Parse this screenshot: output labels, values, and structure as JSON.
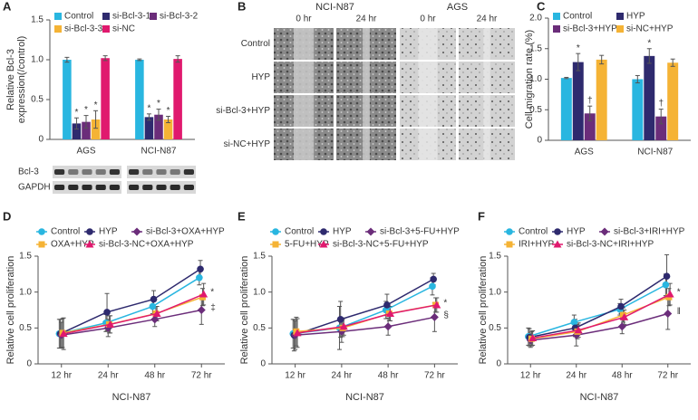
{
  "chart_data": [
    {
      "panel": "A",
      "type": "bar",
      "y_label": [
        "Relative Bcl-3",
        "expression(/control)"
      ],
      "categories": [
        "AGS",
        "NCI-N87"
      ],
      "series": [
        {
          "name": "Control",
          "color": "#29b6e0",
          "values": [
            1.0,
            1.0
          ],
          "errors": [
            0.03,
            0.01
          ],
          "significance": [
            null,
            null
          ]
        },
        {
          "name": "si-Bcl-3-1",
          "color": "#2e2a6e",
          "values": [
            0.2,
            0.28
          ],
          "errors": [
            0.07,
            0.04
          ],
          "significance": [
            "*",
            "*"
          ]
        },
        {
          "name": "si-Bcl-3-2",
          "color": "#6b2d7a",
          "values": [
            0.22,
            0.31
          ],
          "errors": [
            0.08,
            0.07
          ],
          "significance": [
            "*",
            "*"
          ]
        },
        {
          "name": "si-Bcl-3-3",
          "color": "#f5b335",
          "values": [
            0.25,
            0.25
          ],
          "errors": [
            0.11,
            0.04
          ],
          "significance": [
            "*",
            "*"
          ]
        },
        {
          "name": "si-NC",
          "color": "#e0196e",
          "values": [
            1.02,
            1.01
          ],
          "errors": [
            0.03,
            0.04
          ],
          "significance": [
            null,
            null
          ]
        }
      ],
      "ylim": [
        0,
        1.5
      ],
      "yticks": [
        0,
        0.5,
        {
          "value": 1,
          "label": "1.0"
        },
        1.5
      ],
      "blot_labels": [
        "Bcl-3",
        "GAPDH"
      ]
    },
    {
      "panel": "C",
      "type": "bar",
      "y_label": [
        "Cell migration rate (%)"
      ],
      "categories": [
        "AGS",
        "NCI-N87"
      ],
      "series": [
        {
          "name": "Control",
          "color": "#29b6e0",
          "values": [
            1.02,
            1.0
          ],
          "errors": [
            0.01,
            0.06
          ],
          "significance": [
            null,
            null
          ]
        },
        {
          "name": "HYP",
          "color": "#2e2a6e",
          "values": [
            1.28,
            1.38
          ],
          "errors": [
            0.14,
            0.12
          ],
          "significance": [
            "*",
            "*"
          ]
        },
        {
          "name": "si-Bcl-3+HYP",
          "color": "#6b2d7a",
          "values": [
            0.44,
            0.39
          ],
          "errors": [
            0.12,
            0.12
          ],
          "significance": [
            "†",
            "†"
          ]
        },
        {
          "name": "si-NC+HYP",
          "color": "#f5b335",
          "values": [
            1.32,
            1.27
          ],
          "errors": [
            0.07,
            0.06
          ],
          "significance": [
            null,
            null
          ]
        }
      ],
      "ylim": [
        0,
        2
      ],
      "yticks": [
        0,
        0.5,
        {
          "value": 1,
          "label": "1.0"
        },
        1.5,
        {
          "value": 2,
          "label": "2.0"
        }
      ]
    },
    {
      "panel": "D",
      "type": "line",
      "x_label": "NCI-N87",
      "y_label": [
        "Relative cell proliferation"
      ],
      "categories": [
        "12 hr",
        "24 hr",
        "48 hr",
        "72 hr"
      ],
      "series": [
        {
          "name": "Control",
          "color": "#29b6e0",
          "marker": "circle",
          "values": [
            0.42,
            0.57,
            0.8,
            1.2
          ],
          "errors": [
            0.2,
            0.12,
            0.1,
            0.1
          ],
          "significance": null
        },
        {
          "name": "HYP",
          "color": "#2e2a6e",
          "marker": "circle",
          "values": [
            0.42,
            0.72,
            0.9,
            1.32
          ],
          "errors": [
            0.2,
            0.26,
            0.12,
            0.12
          ],
          "significance": null
        },
        {
          "name": "si-Bcl-3+OXA+HYP",
          "color": "#6b2d7a",
          "marker": "diamond",
          "values": [
            0.4,
            0.5,
            0.62,
            0.75
          ],
          "errors": [
            0.18,
            0.12,
            0.1,
            0.2
          ],
          "significance": "‡"
        },
        {
          "name": "OXA+HYP",
          "color": "#f5b335",
          "marker": "square",
          "values": [
            0.43,
            0.55,
            0.7,
            0.93
          ],
          "errors": [
            0.2,
            0.12,
            0.1,
            0.12
          ],
          "significance": null
        },
        {
          "name": "si-Bcl-3-NC+OXA+HYP",
          "color": "#e0196e",
          "marker": "triangle",
          "values": [
            0.42,
            0.55,
            0.7,
            0.97
          ],
          "errors": [
            0.22,
            0.12,
            0.1,
            0.15
          ],
          "significance": "*"
        }
      ],
      "ylim": [
        0,
        1.5
      ],
      "yticks": [
        0,
        0.5,
        {
          "value": 1,
          "label": "1.0"
        },
        1.5
      ]
    },
    {
      "panel": "E",
      "type": "line",
      "x_label": "NCI-N87",
      "y_label": [
        "Relative cell proliferation"
      ],
      "categories": [
        "12 hr",
        "24 hr",
        "48 hr",
        "72 hr"
      ],
      "series": [
        {
          "name": "Control",
          "color": "#29b6e0",
          "marker": "circle",
          "values": [
            0.42,
            0.5,
            0.75,
            1.08
          ],
          "errors": [
            0.2,
            0.3,
            0.12,
            0.12
          ],
          "significance": null
        },
        {
          "name": "HYP",
          "color": "#2e2a6e",
          "marker": "circle",
          "values": [
            0.4,
            0.62,
            0.82,
            1.18
          ],
          "errors": [
            0.22,
            0.25,
            0.15,
            0.08
          ],
          "significance": null
        },
        {
          "name": "si-Bcl-3+5-FU+HYP",
          "color": "#6b2d7a",
          "marker": "diamond",
          "values": [
            0.4,
            0.45,
            0.52,
            0.65
          ],
          "errors": [
            0.2,
            0.15,
            0.12,
            0.2
          ],
          "significance": "§"
        },
        {
          "name": "5-FU+HYP",
          "color": "#f5b335",
          "marker": "square",
          "values": [
            0.45,
            0.5,
            0.7,
            0.82
          ],
          "errors": [
            0.2,
            0.12,
            0.1,
            0.1
          ],
          "significance": null
        },
        {
          "name": "si-Bcl-3-NC+5-FU+HYP",
          "color": "#e0196e",
          "marker": "triangle",
          "values": [
            0.43,
            0.52,
            0.7,
            0.82
          ],
          "errors": [
            0.2,
            0.12,
            0.1,
            0.1
          ],
          "significance": "*"
        }
      ],
      "ylim": [
        0,
        1.5
      ],
      "yticks": [
        0,
        0.5,
        {
          "value": 1,
          "label": "1.0"
        },
        1.5
      ]
    },
    {
      "panel": "F",
      "type": "line",
      "x_label": "NCI-N87",
      "y_label": [
        "Relative cell proliferation"
      ],
      "categories": [
        "12 hr",
        "24 hr",
        "48 hr",
        "72 hr"
      ],
      "series": [
        {
          "name": "Control",
          "color": "#29b6e0",
          "marker": "circle",
          "values": [
            0.38,
            0.58,
            0.76,
            1.1
          ],
          "errors": [
            0.12,
            0.1,
            0.08,
            0.15
          ],
          "significance": null
        },
        {
          "name": "HYP",
          "color": "#2e2a6e",
          "marker": "circle",
          "values": [
            0.37,
            0.5,
            0.8,
            1.22
          ],
          "errors": [
            0.12,
            0.12,
            0.1,
            0.3
          ],
          "significance": null
        },
        {
          "name": "si-Bcl-3+IRI+HYP",
          "color": "#6b2d7a",
          "marker": "diamond",
          "values": [
            0.33,
            0.4,
            0.52,
            0.7
          ],
          "errors": [
            0.1,
            0.15,
            0.1,
            0.22
          ],
          "significance": "‖"
        },
        {
          "name": "IRI+HYP",
          "color": "#f5b335",
          "marker": "square",
          "values": [
            0.35,
            0.45,
            0.68,
            0.93
          ],
          "errors": [
            0.1,
            0.1,
            0.1,
            0.12
          ],
          "significance": null
        },
        {
          "name": "si-Bcl-3-NC+IRI+HYP",
          "color": "#e0196e",
          "marker": "triangle",
          "values": [
            0.36,
            0.47,
            0.65,
            0.97
          ],
          "errors": [
            0.1,
            0.1,
            0.1,
            0.15
          ],
          "significance": "*"
        }
      ],
      "ylim": [
        0,
        1.5
      ],
      "yticks": [
        0,
        0.5,
        {
          "value": 1,
          "label": "1.0"
        },
        1.5
      ]
    }
  ],
  "microscopy": {
    "panel": "B",
    "groups": [
      {
        "title": "NCI-N87",
        "times": [
          "0 hr",
          "24 hr"
        ]
      },
      {
        "title": "AGS",
        "times": [
          "0 hr",
          "24 hr"
        ]
      }
    ],
    "rows": [
      "Control",
      "HYP",
      "si-Bcl-3+HYP",
      "si-NC+HYP"
    ]
  }
}
